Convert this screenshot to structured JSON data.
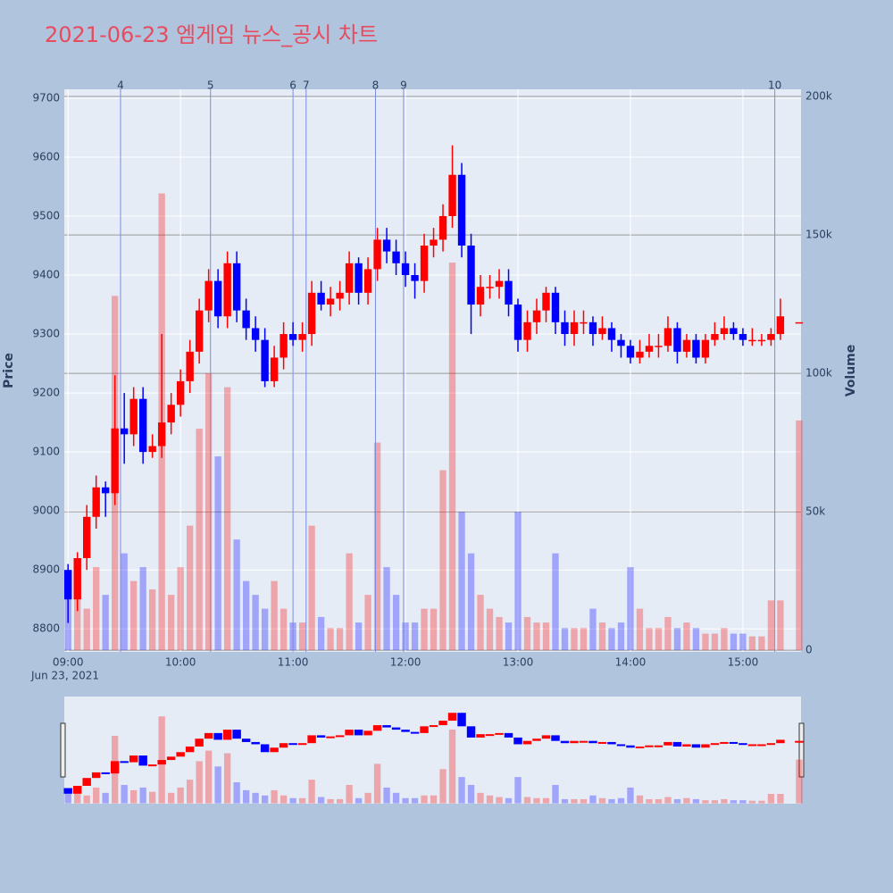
{
  "chart_data": {
    "type": "candlestick",
    "title": "2021-06-23 엠게임 뉴스_공시 차트",
    "y_label": "Price",
    "y2_label": "Volume",
    "x_date_label": "Jun 23, 2021",
    "increasing_color": "#ff0000",
    "decreasing_color": "#0000ff",
    "grid": true,
    "ylim": [
      8761,
      9715
    ],
    "yticks": [
      8800,
      8900,
      9000,
      9100,
      9200,
      9300,
      9400,
      9500,
      9600,
      9700
    ],
    "y2lim": [
      -600,
      202600
    ],
    "y2ticks": [
      0,
      {
        "value": 50000,
        "label": "50k"
      },
      {
        "value": 100000,
        "label": "100k"
      },
      {
        "value": 150000,
        "label": "150k"
      },
      {
        "value": 200000,
        "label": "200k"
      }
    ],
    "xlim": [
      "2021-06-23 08:58",
      "2021-06-23 15:31"
    ],
    "xticks": [
      {
        "value": "2021-06-23 09:00",
        "label": "09:00"
      },
      {
        "value": "2021-06-23 10:00",
        "label": "10:00"
      },
      {
        "value": "2021-06-23 11:00",
        "label": "11:00"
      },
      {
        "value": "2021-06-23 12:00",
        "label": "12:00"
      },
      {
        "value": "2021-06-23 13:00",
        "label": "13:00"
      },
      {
        "value": "2021-06-23 14:00",
        "label": "14:00"
      },
      {
        "value": "2021-06-23 15:00",
        "label": "15:00"
      }
    ],
    "news_markers": [
      {
        "label": "4",
        "x": "2021-06-23 09:28"
      },
      {
        "label": "5",
        "x": "2021-06-23 10:16"
      },
      {
        "label": "6",
        "x": "2021-06-23 11:00"
      },
      {
        "label": "7",
        "x": "2021-06-23 11:07"
      },
      {
        "label": "8",
        "x": "2021-06-23 11:44"
      },
      {
        "label": "9",
        "x": "2021-06-23 11:59"
      },
      {
        "label": "10",
        "x": "2021-06-23 15:17"
      }
    ],
    "x": [
      "2021-06-23 09:00",
      "2021-06-23 09:05",
      "2021-06-23 09:10",
      "2021-06-23 09:15",
      "2021-06-23 09:20",
      "2021-06-23 09:25",
      "2021-06-23 09:30",
      "2021-06-23 09:35",
      "2021-06-23 09:40",
      "2021-06-23 09:45",
      "2021-06-23 09:50",
      "2021-06-23 09:55",
      "2021-06-23 10:00",
      "2021-06-23 10:05",
      "2021-06-23 10:10",
      "2021-06-23 10:15",
      "2021-06-23 10:20",
      "2021-06-23 10:25",
      "2021-06-23 10:30",
      "2021-06-23 10:35",
      "2021-06-23 10:40",
      "2021-06-23 10:45",
      "2021-06-23 10:50",
      "2021-06-23 10:55",
      "2021-06-23 11:00",
      "2021-06-23 11:05",
      "2021-06-23 11:10",
      "2021-06-23 11:15",
      "2021-06-23 11:20",
      "2021-06-23 11:25",
      "2021-06-23 11:30",
      "2021-06-23 11:35",
      "2021-06-23 11:40",
      "2021-06-23 11:45",
      "2021-06-23 11:50",
      "2021-06-23 11:55",
      "2021-06-23 12:00",
      "2021-06-23 12:05",
      "2021-06-23 12:10",
      "2021-06-23 12:15",
      "2021-06-23 12:20",
      "2021-06-23 12:25",
      "2021-06-23 12:30",
      "2021-06-23 12:35",
      "2021-06-23 12:40",
      "2021-06-23 12:45",
      "2021-06-23 12:50",
      "2021-06-23 12:55",
      "2021-06-23 13:00",
      "2021-06-23 13:05",
      "2021-06-23 13:10",
      "2021-06-23 13:15",
      "2021-06-23 13:20",
      "2021-06-23 13:25",
      "2021-06-23 13:30",
      "2021-06-23 13:35",
      "2021-06-23 13:40",
      "2021-06-23 13:45",
      "2021-06-23 13:50",
      "2021-06-23 13:55",
      "2021-06-23 14:00",
      "2021-06-23 14:05",
      "2021-06-23 14:10",
      "2021-06-23 14:15",
      "2021-06-23 14:20",
      "2021-06-23 14:25",
      "2021-06-23 14:30",
      "2021-06-23 14:35",
      "2021-06-23 14:40",
      "2021-06-23 14:45",
      "2021-06-23 14:50",
      "2021-06-23 14:55",
      "2021-06-23 15:00",
      "2021-06-23 15:05",
      "2021-06-23 15:10",
      "2021-06-23 15:15",
      "2021-06-23 15:20",
      "2021-06-23 15:30"
    ],
    "open": [
      8900,
      8850,
      8920,
      8990,
      9040,
      9030,
      9140,
      9130,
      9190,
      9100,
      9110,
      9150,
      9180,
      9220,
      9270,
      9340,
      9390,
      9330,
      9420,
      9340,
      9310,
      9290,
      9220,
      9260,
      9300,
      9290,
      9300,
      9370,
      9350,
      9360,
      9370,
      9420,
      9370,
      9410,
      9460,
      9440,
      9420,
      9400,
      9390,
      9450,
      9460,
      9500,
      9570,
      9450,
      9350,
      9380,
      9380,
      9390,
      9350,
      9290,
      9320,
      9340,
      9370,
      9320,
      9300,
      9320,
      9320,
      9300,
      9310,
      9290,
      9280,
      9260,
      9270,
      9280,
      9280,
      9310,
      9270,
      9290,
      9260,
      9290,
      9300,
      9310,
      9300,
      9290,
      9290,
      9290,
      9300,
      9320
    ],
    "high": [
      8910,
      8930,
      9010,
      9060,
      9050,
      9230,
      9200,
      9210,
      9210,
      9130,
      9300,
      9200,
      9240,
      9290,
      9360,
      9410,
      9410,
      9440,
      9440,
      9360,
      9330,
      9310,
      9280,
      9320,
      9320,
      9320,
      9390,
      9390,
      9380,
      9390,
      9440,
      9430,
      9430,
      9480,
      9480,
      9460,
      9440,
      9420,
      9470,
      9480,
      9520,
      9620,
      9590,
      9470,
      9400,
      9400,
      9410,
      9410,
      9360,
      9340,
      9360,
      9380,
      9380,
      9340,
      9340,
      9340,
      9330,
      9330,
      9320,
      9300,
      9290,
      9290,
      9300,
      9300,
      9330,
      9320,
      9300,
      9300,
      9300,
      9320,
      9330,
      9320,
      9310,
      9310,
      9300,
      9310,
      9360,
      9320
    ],
    "low": [
      8810,
      8830,
      8900,
      8970,
      8990,
      9010,
      9080,
      9110,
      9080,
      9090,
      9090,
      9130,
      9160,
      9200,
      9250,
      9320,
      9310,
      9310,
      9320,
      9290,
      9270,
      9210,
      9210,
      9240,
      9280,
      9270,
      9280,
      9340,
      9330,
      9340,
      9350,
      9350,
      9350,
      9390,
      9420,
      9400,
      9380,
      9360,
      9370,
      9430,
      9440,
      9480,
      9430,
      9300,
      9330,
      9360,
      9360,
      9330,
      9270,
      9270,
      9300,
      9320,
      9300,
      9280,
      9280,
      9300,
      9280,
      9290,
      9270,
      9260,
      9250,
      9250,
      9260,
      9260,
      9270,
      9250,
      9260,
      9250,
      9250,
      9280,
      9290,
      9290,
      9280,
      9280,
      9280,
      9280,
      9290,
      9320
    ],
    "close": [
      8850,
      8920,
      8990,
      9040,
      9030,
      9140,
      9130,
      9190,
      9100,
      9110,
      9150,
      9180,
      9220,
      9270,
      9340,
      9390,
      9330,
      9420,
      9340,
      9310,
      9290,
      9220,
      9260,
      9300,
      9290,
      9300,
      9370,
      9350,
      9360,
      9370,
      9420,
      9370,
      9410,
      9460,
      9440,
      9420,
      9400,
      9390,
      9450,
      9460,
      9500,
      9570,
      9450,
      9350,
      9380,
      9380,
      9390,
      9350,
      9290,
      9320,
      9340,
      9370,
      9320,
      9300,
      9320,
      9320,
      9300,
      9310,
      9290,
      9280,
      9260,
      9270,
      9280,
      9280,
      9310,
      9270,
      9290,
      9260,
      9290,
      9300,
      9310,
      9300,
      9290,
      9290,
      9290,
      9300,
      9330,
      9320
    ],
    "volume": [
      20000,
      25000,
      15000,
      30000,
      20000,
      128000,
      35000,
      25000,
      30000,
      22000,
      165000,
      20000,
      30000,
      45000,
      80000,
      100000,
      70000,
      95000,
      40000,
      25000,
      20000,
      15000,
      25000,
      15000,
      10000,
      10000,
      45000,
      12000,
      8000,
      8000,
      35000,
      10000,
      20000,
      75000,
      30000,
      20000,
      10000,
      10000,
      15000,
      15000,
      65000,
      140000,
      50000,
      35000,
      20000,
      15000,
      12000,
      10000,
      50000,
      12000,
      10000,
      10000,
      35000,
      8000,
      8000,
      8000,
      15000,
      10000,
      8000,
      10000,
      30000,
      15000,
      8000,
      8000,
      12000,
      8000,
      10000,
      8000,
      6000,
      6000,
      8000,
      6000,
      6000,
      5000,
      5000,
      18000,
      18000,
      83000
    ]
  }
}
